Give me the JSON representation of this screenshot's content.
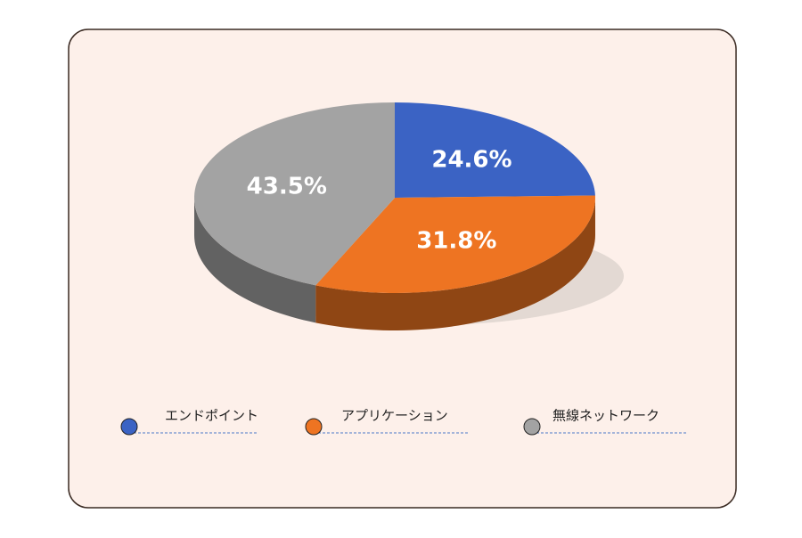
{
  "chart_data": {
    "type": "pie",
    "categories": [
      "エンドポイント",
      "アプリケーション",
      "無線ネットワーク"
    ],
    "values": [
      24.6,
      31.8,
      43.5
    ],
    "value_labels": [
      "24.6%",
      "31.8%",
      "43.5%"
    ],
    "colors": [
      "#3b63c4",
      "#ee7422",
      "#a3a3a3"
    ]
  }
}
